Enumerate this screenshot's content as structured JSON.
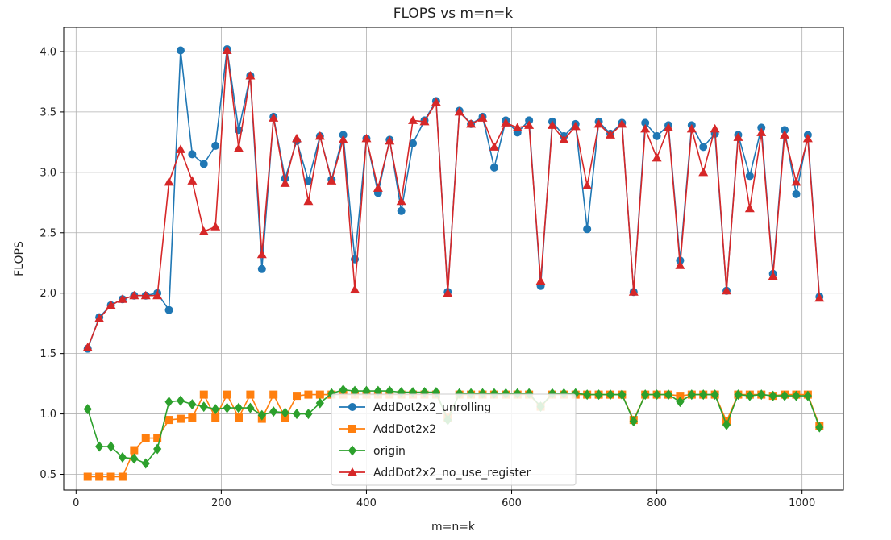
{
  "chart_data": {
    "type": "line",
    "title": "FLOPS vs m=n=k",
    "xlabel": "m=n=k",
    "ylabel": "FLOPS",
    "xlim": [
      -17,
      1057
    ],
    "ylim": [
      0.37,
      4.2
    ],
    "xticks": [
      0,
      200,
      400,
      600,
      800,
      1000
    ],
    "yticks": [
      0.5,
      1.0,
      1.5,
      2.0,
      2.5,
      3.0,
      3.5,
      4.0
    ],
    "xtick_labels": [
      "0",
      "200",
      "400",
      "600",
      "800",
      "1000"
    ],
    "ytick_labels": [
      "0.5",
      "1.0",
      "1.5",
      "2.0",
      "2.5",
      "3.0",
      "3.5",
      "4.0"
    ],
    "grid": true,
    "legend_position": "bottom-center",
    "x": [
      16,
      32,
      48,
      64,
      80,
      96,
      112,
      128,
      144,
      160,
      176,
      192,
      208,
      224,
      240,
      256,
      272,
      288,
      304,
      320,
      336,
      352,
      368,
      384,
      400,
      416,
      432,
      448,
      464,
      480,
      496,
      512,
      528,
      544,
      560,
      576,
      592,
      608,
      624,
      640,
      656,
      672,
      688,
      704,
      720,
      736,
      752,
      768,
      784,
      800,
      816,
      832,
      848,
      864,
      880,
      896,
      912,
      928,
      944,
      960,
      976,
      992,
      1008,
      1024
    ],
    "series": [
      {
        "name": "AddDot2x2_unrolling",
        "color": "#1f77b4",
        "marker": "circle",
        "values": [
          1.54,
          1.8,
          1.9,
          1.95,
          1.98,
          1.98,
          2.0,
          1.86,
          4.01,
          3.15,
          3.07,
          3.22,
          4.02,
          3.35,
          3.8,
          2.2,
          3.46,
          2.95,
          3.26,
          2.93,
          3.3,
          2.94,
          3.31,
          2.28,
          3.28,
          2.83,
          3.27,
          2.68,
          3.24,
          3.43,
          3.59,
          2.01,
          3.51,
          3.4,
          3.46,
          3.04,
          3.43,
          3.33,
          3.43,
          2.06,
          3.42,
          3.3,
          3.4,
          2.53,
          3.42,
          3.32,
          3.41,
          2.01,
          3.41,
          3.3,
          3.39,
          2.27,
          3.39,
          3.21,
          3.32,
          2.02,
          3.31,
          2.97,
          3.37,
          2.16,
          3.35,
          2.82,
          3.31,
          1.97
        ]
      },
      {
        "name": "AddDot2x2",
        "color": "#ff7f0e",
        "marker": "square",
        "values": [
          0.48,
          0.48,
          0.48,
          0.48,
          0.7,
          0.8,
          0.8,
          0.95,
          0.96,
          0.97,
          1.16,
          0.97,
          1.16,
          0.97,
          1.16,
          0.96,
          1.16,
          0.97,
          1.15,
          1.16,
          1.16,
          1.16,
          1.16,
          1.16,
          1.16,
          1.16,
          1.16,
          1.16,
          1.16,
          1.16,
          1.16,
          0.97,
          1.16,
          1.16,
          1.16,
          1.16,
          1.16,
          1.16,
          1.16,
          1.06,
          1.16,
          1.16,
          1.16,
          1.16,
          1.16,
          1.16,
          1.16,
          0.95,
          1.16,
          1.16,
          1.16,
          1.15,
          1.16,
          1.16,
          1.16,
          0.94,
          1.16,
          1.16,
          1.16,
          1.15,
          1.16,
          1.16,
          1.16,
          0.9
        ]
      },
      {
        "name": "origin",
        "color": "#2ca02c",
        "marker": "diamond",
        "values": [
          1.04,
          0.73,
          0.73,
          0.64,
          0.63,
          0.59,
          0.71,
          1.1,
          1.11,
          1.08,
          1.06,
          1.04,
          1.05,
          1.05,
          1.05,
          0.99,
          1.02,
          1.01,
          1.0,
          1.0,
          1.09,
          1.17,
          1.2,
          1.19,
          1.19,
          1.19,
          1.19,
          1.18,
          1.18,
          1.18,
          1.18,
          0.95,
          1.17,
          1.17,
          1.17,
          1.17,
          1.17,
          1.17,
          1.17,
          1.06,
          1.17,
          1.17,
          1.17,
          1.16,
          1.16,
          1.16,
          1.16,
          0.94,
          1.16,
          1.16,
          1.16,
          1.1,
          1.16,
          1.16,
          1.16,
          0.91,
          1.16,
          1.15,
          1.16,
          1.15,
          1.15,
          1.15,
          1.15,
          0.89
        ]
      },
      {
        "name": "AddDot2x2_no_use_register",
        "color": "#d62728",
        "marker": "triangle",
        "values": [
          1.55,
          1.79,
          1.9,
          1.95,
          1.98,
          1.98,
          1.98,
          2.92,
          3.19,
          2.93,
          2.51,
          2.55,
          4.01,
          3.2,
          3.8,
          2.32,
          3.45,
          2.91,
          3.28,
          2.76,
          3.3,
          2.93,
          3.27,
          2.03,
          3.28,
          2.87,
          3.26,
          2.76,
          3.43,
          3.42,
          3.58,
          2.0,
          3.5,
          3.4,
          3.45,
          3.21,
          3.41,
          3.37,
          3.39,
          2.1,
          3.39,
          3.27,
          3.38,
          2.89,
          3.4,
          3.31,
          3.4,
          2.01,
          3.36,
          3.12,
          3.37,
          2.23,
          3.36,
          3.0,
          3.36,
          2.02,
          3.29,
          2.7,
          3.33,
          2.14,
          3.31,
          2.92,
          3.28,
          1.96
        ]
      }
    ]
  }
}
